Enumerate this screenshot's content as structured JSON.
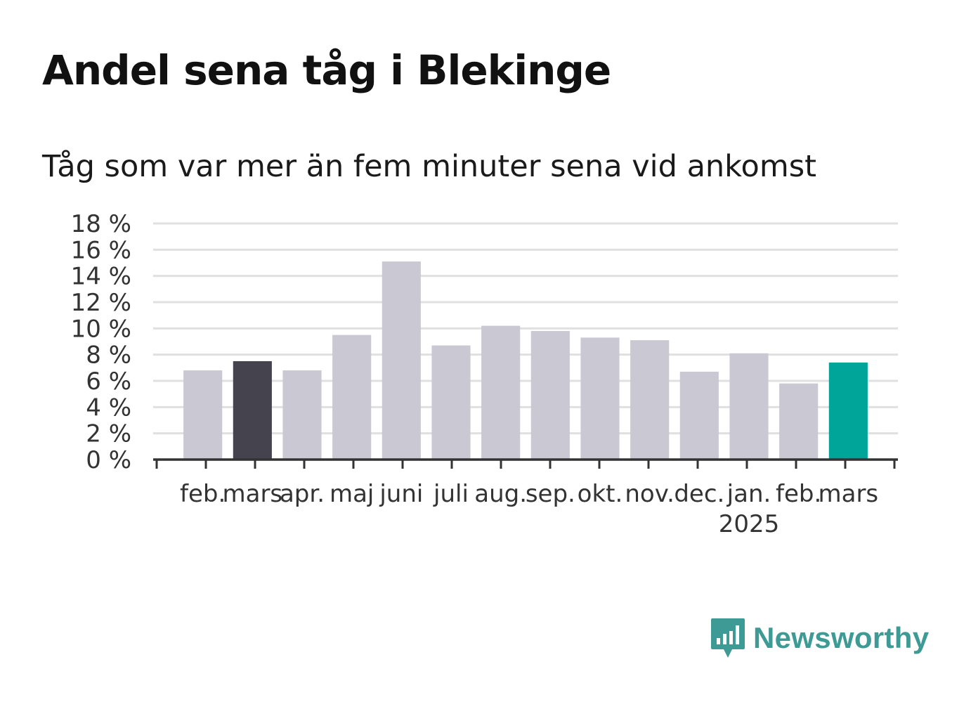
{
  "header": {
    "title": "Andel sena tåg i Blekinge",
    "subtitle": "Tåg som var mer än fem minuter sena vid ankomst"
  },
  "branding": {
    "logo_text": "Newsworthy",
    "logo_icon": "bar-chart-speech-bubble-icon",
    "color": "#3d9a94"
  },
  "chart_data": {
    "type": "bar",
    "categories": [
      "feb.",
      "mars",
      "apr.",
      "maj",
      "juni",
      "juli",
      "aug.",
      "sep.",
      "okt.",
      "nov.",
      "dec.",
      "jan.",
      "feb.",
      "mars"
    ],
    "year_label": {
      "text": "2025",
      "under_category_index": 11
    },
    "values": [
      6.8,
      7.5,
      6.8,
      9.5,
      15.1,
      8.7,
      10.2,
      9.8,
      9.3,
      9.1,
      6.7,
      8.1,
      5.8,
      7.4
    ],
    "ylim": [
      0,
      18
    ],
    "yticks": [
      0,
      2,
      4,
      6,
      8,
      10,
      12,
      14,
      16,
      18
    ],
    "ytick_suffix": " %",
    "grid": true,
    "colors": {
      "default": "#c9c8d3",
      "comparison": "#45434e",
      "highlight": "#00a59a",
      "grid": "#e0e0e0",
      "axis": "#333333"
    },
    "comparison_index": 1,
    "highlight_index": 13
  }
}
